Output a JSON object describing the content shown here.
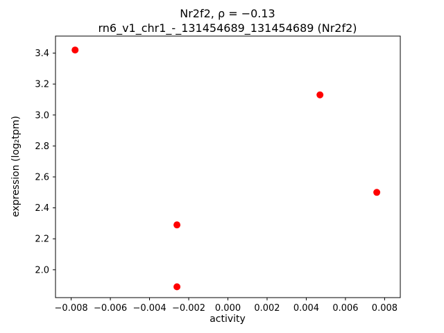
{
  "title": {
    "line1": "Nr2f2, ρ = −0.13",
    "line2": "rn6_v1_chr1_-_131454689_131454689 (Nr2f2)"
  },
  "chart_data": {
    "type": "scatter",
    "title": "Nr2f2, ρ = −0.13",
    "subtitle": "rn6_v1_chr1_-_131454689_131454689 (Nr2f2)",
    "xlabel": "activity",
    "ylabel": "expression (log₂tpm)",
    "xlim": [
      -0.0088,
      0.0088
    ],
    "ylim": [
      1.82,
      3.51
    ],
    "xticks": [
      -0.008,
      -0.006,
      -0.004,
      -0.002,
      0.0,
      0.002,
      0.004,
      0.006,
      0.008
    ],
    "yticks": [
      2.0,
      2.2,
      2.4,
      2.6,
      2.8,
      3.0,
      3.2,
      3.4
    ],
    "marker_color": "#ff0000",
    "marker_radius": 5,
    "grid": false,
    "legend": null,
    "points": [
      {
        "x": -0.0078,
        "y": 3.42
      },
      {
        "x": 0.0047,
        "y": 3.13
      },
      {
        "x": 0.0076,
        "y": 2.5
      },
      {
        "x": -0.0026,
        "y": 2.29
      },
      {
        "x": -0.0026,
        "y": 1.89
      }
    ]
  }
}
